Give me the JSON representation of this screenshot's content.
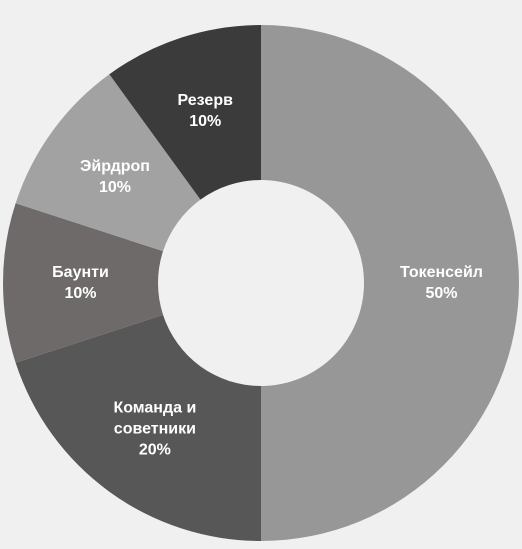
{
  "chart_data": {
    "type": "donut",
    "categories": [
      "Токенсейл",
      "Команда и советники",
      "Баунти",
      "Эйрдроп",
      "Резерв"
    ],
    "values": [
      50,
      20,
      10,
      10,
      10
    ],
    "value_labels": [
      "50%",
      "20%",
      "10%",
      "10%",
      "10%"
    ],
    "colors": [
      "#979797",
      "#575757",
      "#6e6a69",
      "#a2a2a2",
      "#3b3b3b"
    ]
  }
}
